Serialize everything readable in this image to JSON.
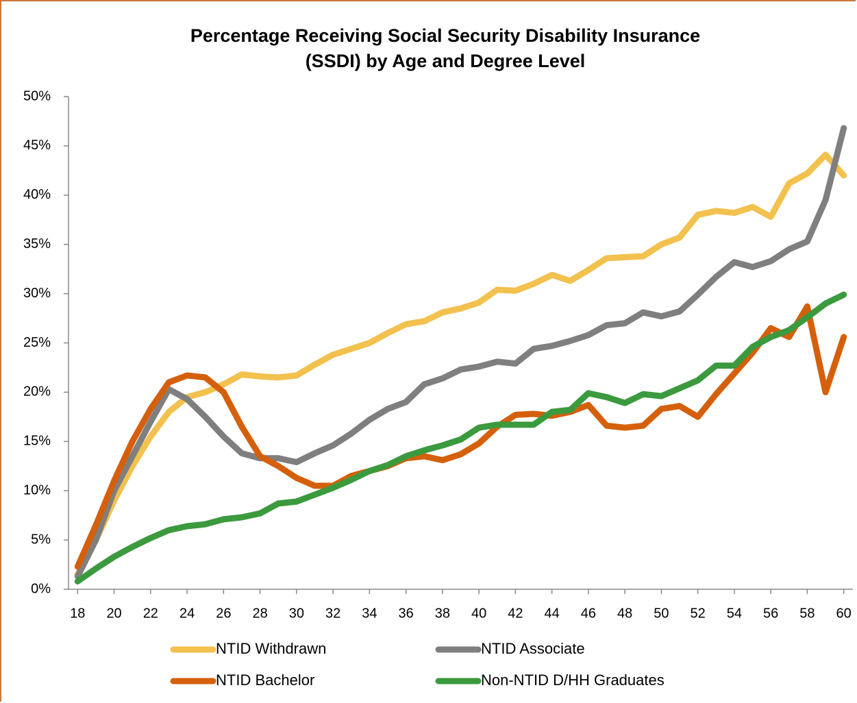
{
  "chart_data": {
    "type": "line",
    "title": "Percentage Receiving Social Security Disability Insurance\n(SSDI) by Age and Degree Level",
    "x": [
      18,
      19,
      20,
      21,
      22,
      23,
      24,
      25,
      26,
      27,
      28,
      29,
      30,
      31,
      32,
      33,
      34,
      35,
      36,
      37,
      38,
      39,
      40,
      41,
      42,
      43,
      44,
      45,
      46,
      47,
      48,
      49,
      50,
      51,
      52,
      53,
      54,
      55,
      56,
      57,
      58,
      59,
      60
    ],
    "xlim": [
      17.5,
      60.5
    ],
    "xticks": [
      18,
      20,
      22,
      24,
      26,
      28,
      30,
      32,
      34,
      36,
      38,
      40,
      42,
      44,
      46,
      48,
      50,
      52,
      54,
      56,
      58,
      60
    ],
    "ylim": [
      0,
      50
    ],
    "yticks": [
      {
        "value": 0,
        "label": "0%"
      },
      {
        "value": 5,
        "label": "5%"
      },
      {
        "value": 10,
        "label": "10%"
      },
      {
        "value": 15,
        "label": "15%"
      },
      {
        "value": 20,
        "label": "20%"
      },
      {
        "value": 25,
        "label": "25%"
      },
      {
        "value": 30,
        "label": "30%"
      },
      {
        "value": 35,
        "label": "35%"
      },
      {
        "value": 40,
        "label": "40%"
      },
      {
        "value": 45,
        "label": "45%"
      },
      {
        "value": 50,
        "label": "50%"
      }
    ],
    "grid": false,
    "legend": "bottom",
    "series": [
      {
        "name": "NTID Withdrawn",
        "color": "#f2c14e",
        "values": [
          1.5,
          5,
          9,
          12.5,
          15.5,
          18,
          19.5,
          20,
          20.8,
          21.8,
          21.6,
          21.5,
          21.7,
          22.8,
          23.8,
          24.4,
          25,
          26,
          26.9,
          27.2,
          28.1,
          28.5,
          29.1,
          30.4,
          30.3,
          31,
          31.9,
          31.3,
          32.4,
          33.6,
          33.7,
          33.8,
          35,
          35.7,
          38,
          38.4,
          38.2,
          38.8,
          37.8,
          41.2,
          42.2,
          44.1,
          42
        ]
      },
      {
        "name": "NTID Associate",
        "color": "#7f7f7f",
        "values": [
          1.3,
          5,
          10,
          13.5,
          17,
          20.3,
          19.3,
          17.5,
          15.5,
          13.8,
          13.3,
          13.3,
          12.9,
          13.8,
          14.6,
          15.8,
          17.2,
          18.3,
          19,
          20.8,
          21.4,
          22.3,
          22.6,
          23.1,
          22.9,
          24.4,
          24.7,
          25.2,
          25.8,
          26.8,
          27,
          28.1,
          27.7,
          28.2,
          29.9,
          31.7,
          33.2,
          32.7,
          33.3,
          34.5,
          35.3,
          39.5,
          46.8
        ]
      },
      {
        "name": "NTID Bachelor",
        "color": "#d5600c",
        "values": [
          2.3,
          6.5,
          11,
          15,
          18.3,
          21,
          21.7,
          21.5,
          20,
          16.5,
          13.5,
          12.5,
          11.3,
          10.5,
          10.5,
          11.5,
          12,
          12.5,
          13.3,
          13.5,
          13.1,
          13.7,
          14.8,
          16.5,
          17.7,
          17.8,
          17.6,
          18,
          18.7,
          16.6,
          16.4,
          16.6,
          18.3,
          18.6,
          17.5,
          19.8,
          21.9,
          24,
          26.5,
          25.6,
          28.7,
          20,
          25.6
        ]
      },
      {
        "name": "Non-NTID D/HH Graduates",
        "color": "#3b9a3e",
        "values": [
          0.8,
          2.1,
          3.3,
          4.3,
          5.2,
          6,
          6.4,
          6.6,
          7.1,
          7.3,
          7.7,
          8.7,
          8.9,
          9.6,
          10.3,
          11.1,
          12,
          12.6,
          13.5,
          14.1,
          14.6,
          15.2,
          16.4,
          16.7,
          16.7,
          16.7,
          18,
          18.2,
          19.9,
          19.5,
          18.9,
          19.8,
          19.6,
          20.4,
          21.2,
          22.7,
          22.7,
          24.6,
          25.6,
          26.3,
          27.6,
          29,
          29.9
        ]
      }
    ]
  }
}
